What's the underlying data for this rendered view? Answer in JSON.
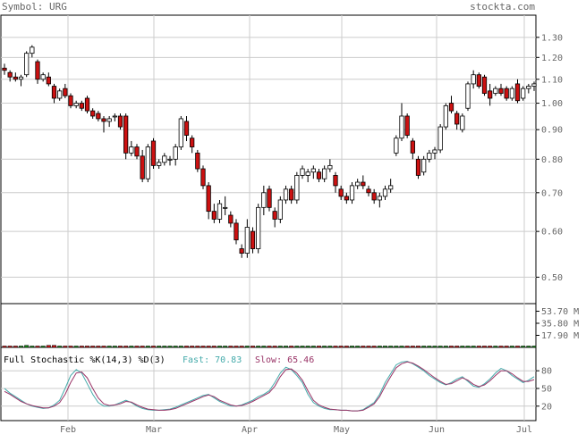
{
  "header": {
    "symbol_label": "Symbol: URG",
    "site": "stockta.com"
  },
  "colors": {
    "up": "#ffffff",
    "down": "#cc1111",
    "vol_up": "#118811",
    "vol_down": "#cc1111",
    "fast": "#44aaaa",
    "slow": "#993366",
    "grid": "#cccccc",
    "frame": "#000000",
    "text": "#666666"
  },
  "chart_data": [
    {
      "type": "candlestick",
      "name": "price",
      "y_scale": "log",
      "ylim": [
        0.45,
        1.42
      ],
      "yticks": [
        "1.30",
        "1.20",
        "1.10",
        "1.00",
        "0.90",
        "0.80",
        "0.70",
        "0.60",
        "0.50"
      ],
      "xticks": [
        "Feb",
        "Mar",
        "Apr",
        "May",
        "Jun",
        "Jul"
      ],
      "ohlc": [
        [
          1.15,
          1.17,
          1.12,
          1.14
        ],
        [
          1.13,
          1.14,
          1.09,
          1.11
        ],
        [
          1.11,
          1.13,
          1.09,
          1.1
        ],
        [
          1.1,
          1.12,
          1.07,
          1.11
        ],
        [
          1.12,
          1.23,
          1.11,
          1.22
        ],
        [
          1.22,
          1.26,
          1.2,
          1.25
        ],
        [
          1.18,
          1.19,
          1.08,
          1.1
        ],
        [
          1.1,
          1.13,
          1.09,
          1.12
        ],
        [
          1.11,
          1.13,
          1.07,
          1.08
        ],
        [
          1.07,
          1.08,
          1.0,
          1.02
        ],
        [
          1.02,
          1.06,
          1.01,
          1.05
        ],
        [
          1.06,
          1.08,
          1.02,
          1.03
        ],
        [
          1.03,
          1.04,
          0.98,
          0.99
        ],
        [
          0.99,
          1.01,
          0.98,
          1.0
        ],
        [
          1.0,
          1.01,
          0.97,
          0.98
        ],
        [
          1.02,
          1.03,
          0.96,
          0.97
        ],
        [
          0.97,
          0.98,
          0.94,
          0.95
        ],
        [
          0.96,
          0.97,
          0.93,
          0.94
        ],
        [
          0.94,
          0.95,
          0.89,
          0.93
        ],
        [
          0.93,
          0.95,
          0.91,
          0.94
        ],
        [
          0.95,
          0.96,
          0.93,
          0.95
        ],
        [
          0.95,
          0.96,
          0.9,
          0.91
        ],
        [
          0.95,
          0.96,
          0.8,
          0.82
        ],
        [
          0.82,
          0.86,
          0.81,
          0.84
        ],
        [
          0.84,
          0.85,
          0.8,
          0.81
        ],
        [
          0.81,
          0.83,
          0.73,
          0.74
        ],
        [
          0.74,
          0.85,
          0.73,
          0.84
        ],
        [
          0.86,
          0.87,
          0.77,
          0.78
        ],
        [
          0.78,
          0.8,
          0.77,
          0.79
        ],
        [
          0.79,
          0.82,
          0.78,
          0.81
        ],
        [
          0.8,
          0.81,
          0.78,
          0.8
        ],
        [
          0.8,
          0.85,
          0.78,
          0.84
        ],
        [
          0.84,
          0.95,
          0.83,
          0.94
        ],
        [
          0.93,
          0.95,
          0.86,
          0.88
        ],
        [
          0.87,
          0.88,
          0.82,
          0.84
        ],
        [
          0.82,
          0.83,
          0.76,
          0.77
        ],
        [
          0.77,
          0.78,
          0.71,
          0.72
        ],
        [
          0.72,
          0.73,
          0.63,
          0.65
        ],
        [
          0.65,
          0.67,
          0.62,
          0.63
        ],
        [
          0.63,
          0.68,
          0.62,
          0.67
        ],
        [
          0.66,
          0.69,
          0.64,
          0.66
        ],
        [
          0.64,
          0.65,
          0.61,
          0.62
        ],
        [
          0.62,
          0.63,
          0.57,
          0.58
        ],
        [
          0.56,
          0.57,
          0.54,
          0.55
        ],
        [
          0.55,
          0.63,
          0.54,
          0.61
        ],
        [
          0.6,
          0.61,
          0.55,
          0.56
        ],
        [
          0.56,
          0.67,
          0.55,
          0.66
        ],
        [
          0.66,
          0.72,
          0.64,
          0.7
        ],
        [
          0.71,
          0.72,
          0.65,
          0.66
        ],
        [
          0.65,
          0.66,
          0.61,
          0.63
        ],
        [
          0.63,
          0.69,
          0.62,
          0.68
        ],
        [
          0.68,
          0.72,
          0.67,
          0.71
        ],
        [
          0.71,
          0.72,
          0.67,
          0.68
        ],
        [
          0.68,
          0.76,
          0.67,
          0.75
        ],
        [
          0.75,
          0.78,
          0.74,
          0.77
        ],
        [
          0.75,
          0.77,
          0.73,
          0.76
        ],
        [
          0.76,
          0.78,
          0.74,
          0.77
        ],
        [
          0.76,
          0.77,
          0.73,
          0.74
        ],
        [
          0.74,
          0.78,
          0.73,
          0.77
        ],
        [
          0.77,
          0.8,
          0.76,
          0.78
        ],
        [
          0.75,
          0.76,
          0.7,
          0.72
        ],
        [
          0.71,
          0.72,
          0.68,
          0.69
        ],
        [
          0.69,
          0.7,
          0.67,
          0.68
        ],
        [
          0.68,
          0.73,
          0.67,
          0.72
        ],
        [
          0.72,
          0.74,
          0.71,
          0.73
        ],
        [
          0.73,
          0.75,
          0.71,
          0.72
        ],
        [
          0.71,
          0.72,
          0.69,
          0.7
        ],
        [
          0.7,
          0.71,
          0.67,
          0.68
        ],
        [
          0.68,
          0.7,
          0.66,
          0.69
        ],
        [
          0.69,
          0.72,
          0.68,
          0.71
        ],
        [
          0.71,
          0.74,
          0.7,
          0.72
        ],
        [
          0.82,
          0.88,
          0.81,
          0.87
        ],
        [
          0.87,
          1.0,
          0.86,
          0.95
        ],
        [
          0.95,
          0.96,
          0.87,
          0.88
        ],
        [
          0.86,
          0.87,
          0.8,
          0.82
        ],
        [
          0.8,
          0.81,
          0.74,
          0.75
        ],
        [
          0.76,
          0.81,
          0.75,
          0.8
        ],
        [
          0.8,
          0.83,
          0.79,
          0.82
        ],
        [
          0.82,
          0.84,
          0.8,
          0.83
        ],
        [
          0.83,
          0.92,
          0.82,
          0.91
        ],
        [
          0.91,
          1.0,
          0.9,
          0.99
        ],
        [
          1.0,
          1.03,
          0.96,
          0.97
        ],
        [
          0.96,
          0.97,
          0.9,
          0.92
        ],
        [
          0.9,
          0.96,
          0.89,
          0.95
        ],
        [
          0.98,
          1.09,
          0.97,
          1.08
        ],
        [
          1.08,
          1.14,
          1.06,
          1.12
        ],
        [
          1.12,
          1.13,
          1.06,
          1.07
        ],
        [
          1.11,
          1.12,
          1.03,
          1.04
        ],
        [
          1.05,
          1.08,
          0.99,
          1.02
        ],
        [
          1.04,
          1.07,
          1.03,
          1.06
        ],
        [
          1.06,
          1.08,
          1.03,
          1.04
        ],
        [
          1.06,
          1.07,
          1.01,
          1.02
        ],
        [
          1.02,
          1.07,
          1.01,
          1.06
        ],
        [
          1.08,
          1.1,
          1.0,
          1.01
        ],
        [
          1.02,
          1.07,
          1.01,
          1.06
        ],
        [
          1.06,
          1.08,
          1.04,
          1.07
        ],
        [
          1.07,
          1.09,
          1.05,
          1.08
        ]
      ]
    },
    {
      "type": "bar",
      "name": "volume",
      "y_unit": "M",
      "ylim": [
        0,
        65
      ],
      "yticks": [
        "53.70 M",
        "35.80 M",
        "17.90 M"
      ],
      "values": [
        2,
        2,
        2,
        2,
        3,
        2,
        2,
        2,
        3,
        3,
        2,
        2,
        2,
        2,
        2,
        2,
        2,
        2,
        2,
        2,
        2,
        2,
        2,
        2,
        2,
        2,
        2,
        2,
        2,
        2,
        2,
        2,
        2,
        2,
        2,
        2,
        2,
        2,
        2,
        2,
        2,
        2,
        2,
        2,
        2,
        2,
        2,
        2,
        2,
        2,
        2,
        2,
        2,
        2,
        2,
        2,
        2,
        2,
        2,
        2,
        2,
        2,
        2,
        2,
        2,
        2,
        2,
        2,
        2,
        2,
        2,
        2,
        2,
        2,
        2,
        2,
        2,
        2,
        2,
        2,
        2,
        2,
        2,
        2,
        2,
        2,
        2,
        2,
        2,
        2,
        2,
        2,
        2,
        2,
        2,
        2,
        2
      ]
    },
    {
      "type": "line",
      "name": "stochastic",
      "title": "Full Stochastic %K(14,3) %D(3)",
      "fast_label": "Fast: 70.83",
      "slow_label": "Slow: 65.46",
      "ylim": [
        0,
        100
      ],
      "yticks": [
        "80",
        "50",
        "20"
      ],
      "series": [
        {
          "name": "Fast",
          "values": [
            50,
            42,
            36,
            30,
            24,
            20,
            18,
            16,
            17,
            22,
            30,
            50,
            72,
            82,
            76,
            58,
            40,
            26,
            20,
            20,
            22,
            26,
            30,
            26,
            20,
            16,
            14,
            13,
            13,
            14,
            15,
            18,
            22,
            26,
            30,
            34,
            38,
            40,
            34,
            28,
            24,
            20,
            20,
            22,
            26,
            30,
            36,
            40,
            46,
            60,
            76,
            86,
            82,
            72,
            60,
            40,
            26,
            20,
            16,
            14,
            14,
            13,
            13,
            12,
            12,
            14,
            20,
            26,
            40,
            60,
            75,
            90,
            95,
            96,
            92,
            86,
            80,
            72,
            66,
            60,
            56,
            60,
            66,
            70,
            62,
            54,
            52,
            58,
            66,
            76,
            84,
            80,
            72,
            66,
            60,
            64,
            70
          ]
        },
        {
          "name": "Slow",
          "values": [
            45,
            40,
            34,
            28,
            24,
            21,
            19,
            17,
            17,
            20,
            26,
            40,
            60,
            76,
            78,
            68,
            50,
            34,
            24,
            21,
            22,
            24,
            28,
            27,
            22,
            18,
            15,
            14,
            13,
            13,
            14,
            16,
            20,
            24,
            28,
            32,
            36,
            39,
            36,
            30,
            26,
            22,
            20,
            21,
            24,
            28,
            33,
            38,
            43,
            54,
            70,
            82,
            83,
            76,
            64,
            46,
            30,
            22,
            18,
            15,
            14,
            13,
            13,
            12,
            12,
            13,
            18,
            24,
            36,
            54,
            70,
            85,
            92,
            95,
            93,
            88,
            82,
            75,
            68,
            62,
            57,
            58,
            63,
            68,
            64,
            57,
            53,
            56,
            63,
            72,
            80,
            80,
            75,
            68,
            62,
            62,
            65
          ]
        }
      ]
    }
  ]
}
